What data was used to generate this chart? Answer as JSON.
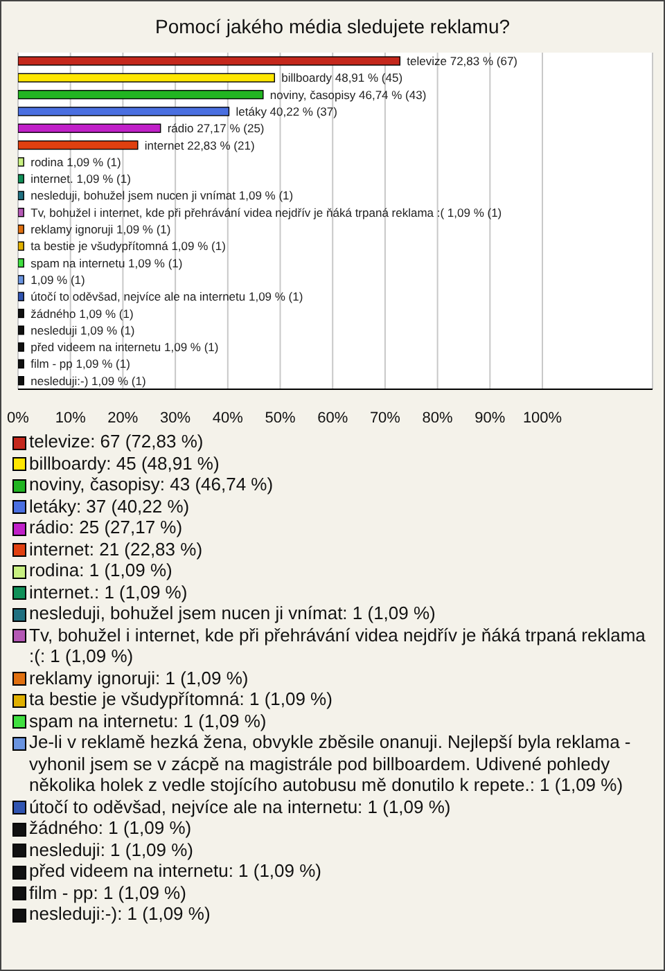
{
  "chart_data": {
    "type": "bar",
    "orientation": "horizontal",
    "stacked": true,
    "title": "Pomocí jakého média sledujete reklamu?",
    "categories": [
      null,
      null,
      null,
      null,
      null,
      null,
      null,
      null,
      null,
      null,
      null,
      null,
      null,
      null,
      null,
      null,
      null,
      null,
      null,
      null
    ],
    "xlim": [
      0,
      121
    ],
    "xticks": [
      {
        "value": 0,
        "label": "0%"
      },
      {
        "value": 10,
        "label": "10%"
      },
      {
        "value": 20,
        "label": "20%"
      },
      {
        "value": 30,
        "label": "30%"
      },
      {
        "value": 40,
        "label": "40%"
      },
      {
        "value": 50,
        "label": "50%"
      },
      {
        "value": 60,
        "label": "60%"
      },
      {
        "value": 70,
        "label": "70%"
      },
      {
        "value": 80,
        "label": "80%"
      },
      {
        "value": 90,
        "label": "90%"
      },
      {
        "value": 100,
        "label": "100%"
      }
    ],
    "grid": "x",
    "legend": "bottom",
    "series": [
      {
        "name": "televize: 67 (72,83 %)",
        "color": "#c4281c",
        "values": [
          72.83,
          null,
          null,
          null,
          null,
          null,
          null,
          null,
          null,
          null,
          null,
          null,
          null,
          null,
          null,
          null,
          null,
          null,
          null,
          null
        ],
        "value_labels": [
          "televize 72,83 % (67)",
          null,
          null,
          null,
          null,
          null,
          null,
          null,
          null,
          null,
          null,
          null,
          null,
          null,
          null,
          null,
          null,
          null,
          null,
          null
        ]
      },
      {
        "name": "billboardy: 45 (48,91 %)",
        "color": "#ffe600",
        "values": [
          null,
          48.91,
          null,
          null,
          null,
          null,
          null,
          null,
          null,
          null,
          null,
          null,
          null,
          null,
          null,
          null,
          null,
          null,
          null,
          null
        ],
        "value_labels": [
          null,
          "billboardy 48,91 % (45)",
          null,
          null,
          null,
          null,
          null,
          null,
          null,
          null,
          null,
          null,
          null,
          null,
          null,
          null,
          null,
          null,
          null,
          null
        ]
      },
      {
        "name": "noviny, časopisy: 43 (46,74 %)",
        "color": "#22b522",
        "values": [
          null,
          null,
          46.74,
          null,
          null,
          null,
          null,
          null,
          null,
          null,
          null,
          null,
          null,
          null,
          null,
          null,
          null,
          null,
          null,
          null
        ],
        "value_labels": [
          null,
          null,
          "noviny, časopisy 46,74 % (43)",
          null,
          null,
          null,
          null,
          null,
          null,
          null,
          null,
          null,
          null,
          null,
          null,
          null,
          null,
          null,
          null,
          null
        ]
      },
      {
        "name": "letáky: 37 (40,22 %)",
        "color": "#4a6fe0",
        "values": [
          null,
          null,
          null,
          40.22,
          null,
          null,
          null,
          null,
          null,
          null,
          null,
          null,
          null,
          null,
          null,
          null,
          null,
          null,
          null,
          null
        ],
        "value_labels": [
          null,
          null,
          null,
          "letáky 40,22 % (37)",
          null,
          null,
          null,
          null,
          null,
          null,
          null,
          null,
          null,
          null,
          null,
          null,
          null,
          null,
          null,
          null
        ]
      },
      {
        "name": "rádio: 25 (27,17 %)",
        "color": "#c020c8",
        "values": [
          null,
          null,
          null,
          null,
          27.17,
          null,
          null,
          null,
          null,
          null,
          null,
          null,
          null,
          null,
          null,
          null,
          null,
          null,
          null,
          null
        ],
        "value_labels": [
          null,
          null,
          null,
          null,
          "rádio 27,17 % (25)",
          null,
          null,
          null,
          null,
          null,
          null,
          null,
          null,
          null,
          null,
          null,
          null,
          null,
          null,
          null
        ]
      },
      {
        "name": "internet: 21 (22,83 %)",
        "color": "#e04010",
        "values": [
          null,
          null,
          null,
          null,
          null,
          22.83,
          null,
          null,
          null,
          null,
          null,
          null,
          null,
          null,
          null,
          null,
          null,
          null,
          null,
          null
        ],
        "value_labels": [
          null,
          null,
          null,
          null,
          null,
          "internet 22,83 % (21)",
          null,
          null,
          null,
          null,
          null,
          null,
          null,
          null,
          null,
          null,
          null,
          null,
          null,
          null
        ]
      },
      {
        "name": "rodina: 1 (1,09 %)",
        "color": "#c8f080",
        "values": [
          null,
          null,
          null,
          null,
          null,
          null,
          1.09,
          null,
          null,
          null,
          null,
          null,
          null,
          null,
          null,
          null,
          null,
          null,
          null,
          null
        ],
        "value_labels": [
          null,
          null,
          null,
          null,
          null,
          null,
          "rodina 1,09 % (1)",
          null,
          null,
          null,
          null,
          null,
          null,
          null,
          null,
          null,
          null,
          null,
          null,
          null
        ]
      },
      {
        "name": "internet.: 1 (1,09 %)",
        "color": "#109058",
        "values": [
          null,
          null,
          null,
          null,
          null,
          null,
          null,
          1.09,
          null,
          null,
          null,
          null,
          null,
          null,
          null,
          null,
          null,
          null,
          null,
          null
        ],
        "value_labels": [
          null,
          null,
          null,
          null,
          null,
          null,
          null,
          "internet. 1,09 % (1)",
          null,
          null,
          null,
          null,
          null,
          null,
          null,
          null,
          null,
          null,
          null,
          null
        ]
      },
      {
        "name": "nesleduji,  bohužel jsem nucen ji vnímat: 1 (1,09 %)",
        "color": "#207080",
        "values": [
          null,
          null,
          null,
          null,
          null,
          null,
          null,
          null,
          1.09,
          null,
          null,
          null,
          null,
          null,
          null,
          null,
          null,
          null,
          null,
          null
        ],
        "value_labels": [
          null,
          null,
          null,
          null,
          null,
          null,
          null,
          null,
          "nesleduji,  bohužel jsem nucen ji vnímat 1,09 % (1)",
          null,
          null,
          null,
          null,
          null,
          null,
          null,
          null,
          null,
          null,
          null
        ]
      },
      {
        "name": "Tv, bohužel i internet, kde při přehrávání videa nejdřív je ňáká trpaná reklama :(: 1 (1,09 %)",
        "color": "#b458b4",
        "values": [
          null,
          null,
          null,
          null,
          null,
          null,
          null,
          null,
          null,
          1.09,
          null,
          null,
          null,
          null,
          null,
          null,
          null,
          null,
          null,
          null
        ],
        "value_labels": [
          null,
          null,
          null,
          null,
          null,
          null,
          null,
          null,
          null,
          "Tv, bohužel i internet, kde při přehrávání videa nejdřív je ňáká trpaná reklama :( 1,09 % (1)",
          null,
          null,
          null,
          null,
          null,
          null,
          null,
          null,
          null,
          null
        ]
      },
      {
        "name": "reklamy ignoruji: 1 (1,09 %)",
        "color": "#e07010",
        "values": [
          null,
          null,
          null,
          null,
          null,
          null,
          null,
          null,
          null,
          null,
          1.09,
          null,
          null,
          null,
          null,
          null,
          null,
          null,
          null,
          null
        ],
        "value_labels": [
          null,
          null,
          null,
          null,
          null,
          null,
          null,
          null,
          null,
          null,
          "reklamy ignoruji 1,09 % (1)",
          null,
          null,
          null,
          null,
          null,
          null,
          null,
          null,
          null
        ]
      },
      {
        "name": "ta bestie je všudypřítomná: 1 (1,09 %)",
        "color": "#e0b000",
        "values": [
          null,
          null,
          null,
          null,
          null,
          null,
          null,
          null,
          null,
          null,
          null,
          1.09,
          null,
          null,
          null,
          null,
          null,
          null,
          null,
          null
        ],
        "value_labels": [
          null,
          null,
          null,
          null,
          null,
          null,
          null,
          null,
          null,
          null,
          null,
          "ta bestie je všudypřítomná 1,09 % (1)",
          null,
          null,
          null,
          null,
          null,
          null,
          null,
          null
        ]
      },
      {
        "name": "spam na internetu: 1 (1,09 %)",
        "color": "#40e040",
        "values": [
          null,
          null,
          null,
          null,
          null,
          null,
          null,
          null,
          null,
          null,
          null,
          null,
          1.09,
          null,
          null,
          null,
          null,
          null,
          null,
          null
        ],
        "value_labels": [
          null,
          null,
          null,
          null,
          null,
          null,
          null,
          null,
          null,
          null,
          null,
          null,
          "spam na internetu 1,09 % (1)",
          null,
          null,
          null,
          null,
          null,
          null,
          null
        ]
      },
      {
        "name": "Je-li v reklamě hezká žena, obvykle zběsile onanuji. Nejlepší byla reklama - vyhonil jsem se v zácpě na magistrále pod billboardem. Udivené pohledy několika holek z vedle stojícího autobusu mě donutilo k repete.: 1 (1,09 %)",
        "color": "#6a94e0",
        "values": [
          null,
          null,
          null,
          null,
          null,
          null,
          null,
          null,
          null,
          null,
          null,
          null,
          null,
          1.09,
          null,
          null,
          null,
          null,
          null,
          null
        ],
        "value_labels": [
          null,
          null,
          null,
          null,
          null,
          null,
          null,
          null,
          null,
          null,
          null,
          null,
          null,
          "1,09 % (1)",
          null,
          null,
          null,
          null,
          null,
          null
        ]
      },
      {
        "name": "útočí to oděvšad, nejvíce ale na internetu: 1 (1,09 %)",
        "color": "#3054b0",
        "values": [
          null,
          null,
          null,
          null,
          null,
          null,
          null,
          null,
          null,
          null,
          null,
          null,
          null,
          null,
          1.09,
          null,
          null,
          null,
          null,
          null
        ],
        "value_labels": [
          null,
          null,
          null,
          null,
          null,
          null,
          null,
          null,
          null,
          null,
          null,
          null,
          null,
          null,
          "útočí to oděvšad, nejvíce ale na internetu 1,09 % (1)",
          null,
          null,
          null,
          null,
          null
        ]
      },
      {
        "name": "žádného: 1 (1,09 %)",
        "color": "#111111",
        "values": [
          null,
          null,
          null,
          null,
          null,
          null,
          null,
          null,
          null,
          null,
          null,
          null,
          null,
          null,
          null,
          1.09,
          null,
          null,
          null,
          null
        ],
        "value_labels": [
          null,
          null,
          null,
          null,
          null,
          null,
          null,
          null,
          null,
          null,
          null,
          null,
          null,
          null,
          null,
          "žádného 1,09 % (1)",
          null,
          null,
          null,
          null
        ]
      },
      {
        "name": "nesleduji: 1 (1,09 %)",
        "color": "#111111",
        "values": [
          null,
          null,
          null,
          null,
          null,
          null,
          null,
          null,
          null,
          null,
          null,
          null,
          null,
          null,
          null,
          null,
          1.09,
          null,
          null,
          null
        ],
        "value_labels": [
          null,
          null,
          null,
          null,
          null,
          null,
          null,
          null,
          null,
          null,
          null,
          null,
          null,
          null,
          null,
          null,
          "nesleduji 1,09 % (1)",
          null,
          null,
          null
        ]
      },
      {
        "name": "před videem na internetu: 1 (1,09 %)",
        "color": "#111111",
        "values": [
          null,
          null,
          null,
          null,
          null,
          null,
          null,
          null,
          null,
          null,
          null,
          null,
          null,
          null,
          null,
          null,
          null,
          1.09,
          null,
          null
        ],
        "value_labels": [
          null,
          null,
          null,
          null,
          null,
          null,
          null,
          null,
          null,
          null,
          null,
          null,
          null,
          null,
          null,
          null,
          null,
          "před videem na internetu 1,09 % (1)",
          null,
          null
        ]
      },
      {
        "name": "film - pp: 1 (1,09 %)",
        "color": "#111111",
        "values": [
          null,
          null,
          null,
          null,
          null,
          null,
          null,
          null,
          null,
          null,
          null,
          null,
          null,
          null,
          null,
          null,
          null,
          null,
          1.09,
          null
        ],
        "value_labels": [
          null,
          null,
          null,
          null,
          null,
          null,
          null,
          null,
          null,
          null,
          null,
          null,
          null,
          null,
          null,
          null,
          null,
          null,
          "film - pp 1,09 % (1)",
          null
        ]
      },
      {
        "name": "nesleduji:-): 1 (1,09 %)",
        "color": "#111111",
        "values": [
          null,
          null,
          null,
          null,
          null,
          null,
          null,
          null,
          null,
          null,
          null,
          null,
          null,
          null,
          null,
          null,
          null,
          null,
          null,
          1.09
        ],
        "value_labels": [
          null,
          null,
          null,
          null,
          null,
          null,
          null,
          null,
          null,
          null,
          null,
          null,
          null,
          null,
          null,
          null,
          null,
          null,
          null,
          "nesleduji:-) 1,09 % (1)"
        ]
      }
    ]
  }
}
